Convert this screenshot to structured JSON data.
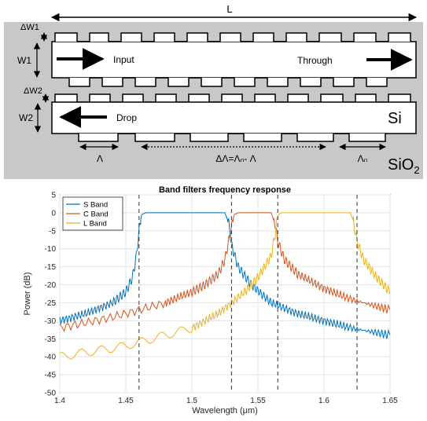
{
  "diagram": {
    "background_color": "#c8c8c8",
    "labels": {
      "length": "L",
      "dw1": "ΔW1",
      "w1": "W1",
      "input": "Input",
      "through": "Through",
      "dw2": "ΔW2",
      "w2": "W2",
      "drop": "Drop",
      "si": "Si",
      "period": "Λ",
      "delta_period": "ΔΛ=Λₙ- Λ",
      "period_n": "Λₙ",
      "cladding": "SiO",
      "cladding_sub": "2"
    }
  },
  "chart_data": {
    "type": "line",
    "title": "Band filters frequency response",
    "xlabel": "Wavelength (μm)",
    "ylabel": "Power (dB)",
    "xlim": [
      1.4,
      1.65
    ],
    "ylim": [
      -50,
      5
    ],
    "xticks": [
      "1.4",
      "1.45",
      "1.5",
      "1.55",
      "1.6",
      "1.65"
    ],
    "yticks": [
      "5",
      "0",
      "-5",
      "-10",
      "-15",
      "-20",
      "-25",
      "-30",
      "-35",
      "-40",
      "-45",
      "-50"
    ],
    "grid": true,
    "legend_position": "top-left",
    "band_edges": [
      1.46,
      1.53,
      1.565,
      1.625
    ],
    "series": [
      {
        "name": "S Band",
        "color": "#0072bd",
        "x": [
          1.4,
          1.42,
          1.44,
          1.45,
          1.455,
          1.458,
          1.46,
          1.462,
          1.465,
          1.5,
          1.525,
          1.528,
          1.53,
          1.535,
          1.545,
          1.56,
          1.58,
          1.6,
          1.62,
          1.65
        ],
        "y": [
          -30,
          -28,
          -25,
          -22,
          -18,
          -12,
          -5,
          -0.5,
          0,
          0,
          0,
          -3,
          -9,
          -15,
          -20,
          -25,
          -28,
          -30,
          -32,
          -34
        ]
      },
      {
        "name": "C Band",
        "color": "#d95319",
        "x": [
          1.4,
          1.44,
          1.48,
          1.5,
          1.51,
          1.52,
          1.525,
          1.53,
          1.532,
          1.535,
          1.56,
          1.563,
          1.565,
          1.57,
          1.58,
          1.6,
          1.62,
          1.65
        ],
        "y": [
          -32,
          -29,
          -25,
          -22,
          -20,
          -17,
          -13,
          -4,
          -0.5,
          0,
          0,
          -3,
          -8,
          -13,
          -17,
          -21,
          -24,
          -27
        ]
      },
      {
        "name": "L Band",
        "color": "#edb120",
        "x": [
          1.4,
          1.45,
          1.5,
          1.52,
          1.54,
          1.55,
          1.56,
          1.563,
          1.565,
          1.567,
          1.62,
          1.622,
          1.625,
          1.63,
          1.64,
          1.65
        ],
        "y": [
          -40,
          -37,
          -32,
          -28,
          -22,
          -18,
          -12,
          -6,
          -1,
          0,
          0,
          -2,
          -8,
          -13,
          -18,
          -22
        ]
      }
    ]
  }
}
